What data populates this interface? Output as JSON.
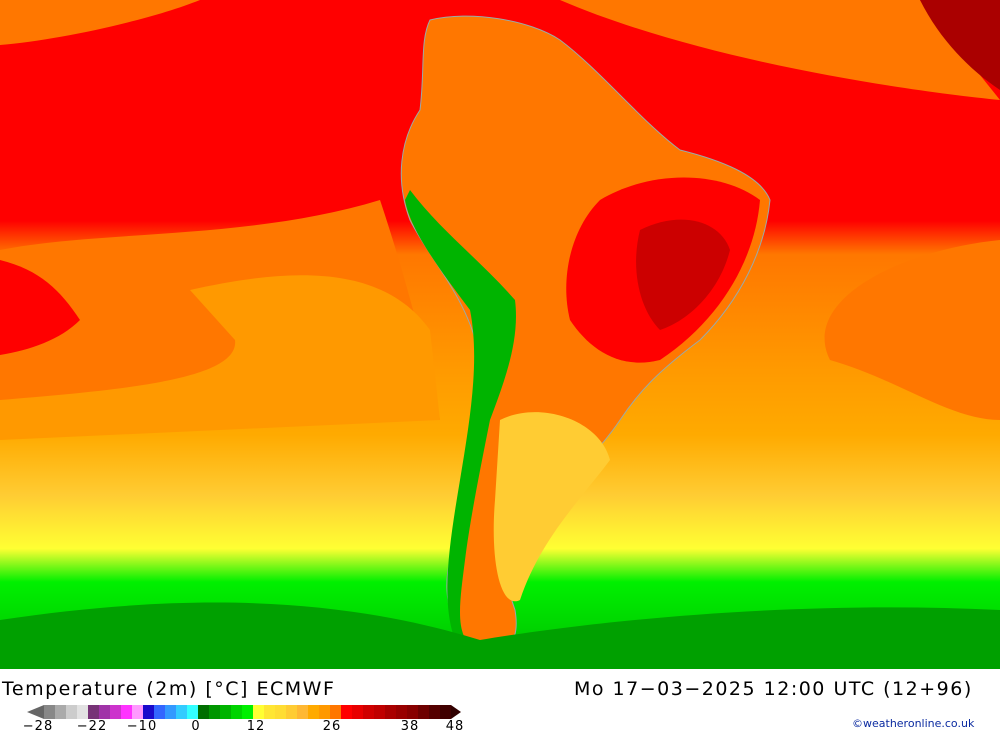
{
  "map": {
    "title": "Temperature (2m) [°C] ECMWF",
    "datetime": "Mo 17-03-2025 12:00 UTC (12+96)",
    "credit": "©weatheronline.co.uk"
  },
  "legend": {
    "unit": "°C",
    "ticks": [
      "-28",
      "-22",
      "-10",
      "0",
      "12",
      "26",
      "38",
      "48"
    ],
    "low_arrow_color": "#666666",
    "high_arrow_color": "#300000",
    "colors": [
      "#888888",
      "#aaaaaa",
      "#cccccc",
      "#e2e2e2",
      "#773377",
      "#a033a8",
      "#cc33cc",
      "#ff33ff",
      "#ff99ff",
      "#1a0acc",
      "#3366ff",
      "#3399ff",
      "#33ccff",
      "#33ffff",
      "#006e00",
      "#009600",
      "#00b400",
      "#00d400",
      "#00f000",
      "#ffff33",
      "#ffe633",
      "#ffdd33",
      "#ffcc33",
      "#ffb833",
      "#ffaa00",
      "#ff9900",
      "#ff7700",
      "#ff0000",
      "#e80000",
      "#d00000",
      "#c00000",
      "#aa0000",
      "#990000",
      "#880000",
      "#6e0000",
      "#550000",
      "#400000"
    ]
  }
}
